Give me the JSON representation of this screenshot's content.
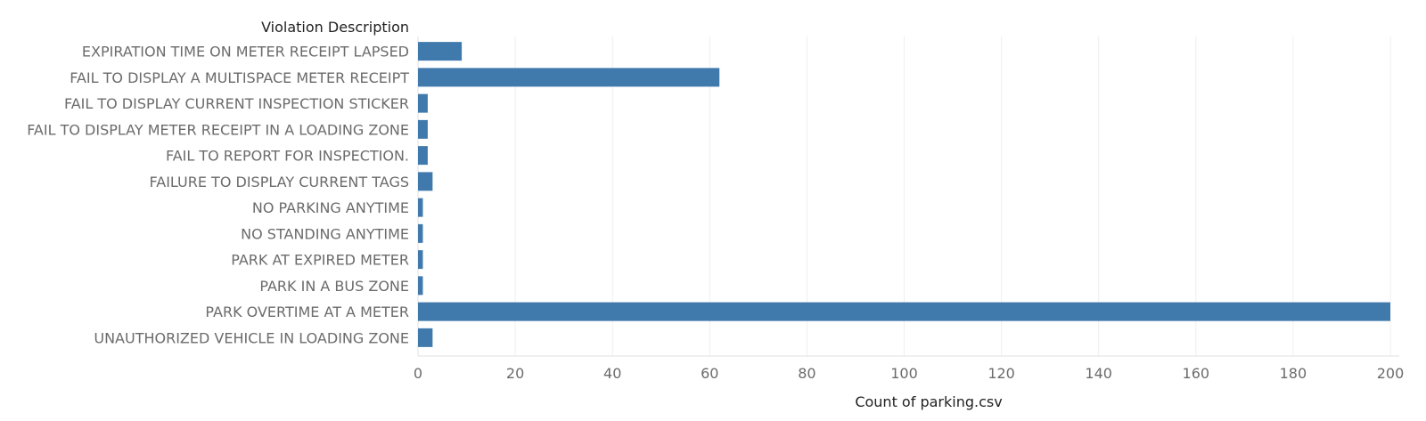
{
  "chart_data": {
    "type": "bar",
    "orientation": "horizontal",
    "row_header": "Violation Description",
    "xlabel": "Count of parking.csv",
    "categories": [
      "EXPIRATION TIME ON METER RECEIPT LAPSED",
      "FAIL TO DISPLAY A MULTISPACE METER RECEIPT",
      "FAIL TO DISPLAY CURRENT INSPECTION STICKER",
      "FAIL TO DISPLAY METER RECEIPT IN A LOADING ZONE",
      "FAIL TO REPORT FOR INSPECTION.",
      "FAILURE TO DISPLAY CURRENT TAGS",
      "NO PARKING ANYTIME",
      "NO STANDING ANYTIME",
      "PARK AT EXPIRED METER",
      "PARK IN A BUS ZONE",
      "PARK OVERTIME AT A METER",
      "UNAUTHORIZED VEHICLE IN LOADING ZONE"
    ],
    "values": [
      9,
      62,
      2,
      2,
      2,
      3,
      1,
      1,
      1,
      1,
      200,
      3
    ],
    "xlim": [
      0,
      200
    ],
    "xticks": [
      0,
      20,
      40,
      60,
      80,
      100,
      120,
      140,
      160,
      180,
      200
    ],
    "grid": "vertical",
    "bar_color": "#4079ab"
  }
}
